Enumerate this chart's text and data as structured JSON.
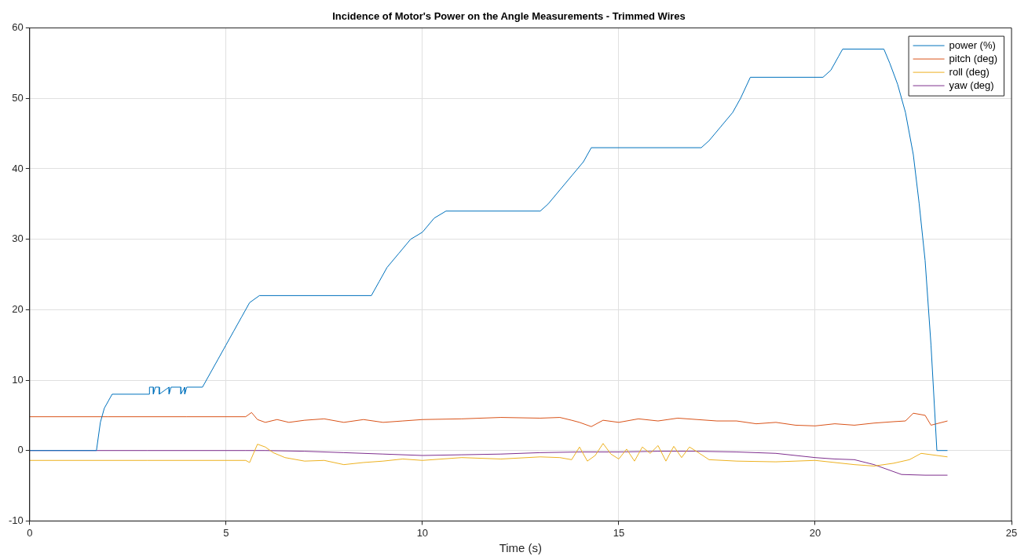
{
  "chart_data": {
    "type": "line",
    "title": "Incidence of Motor's Power on the Angle Measurements - Trimmed Wires",
    "xlabel": "Time (s)",
    "xlim": [
      0,
      25
    ],
    "xticks": [
      0,
      5,
      10,
      15,
      20,
      25
    ],
    "ylim": [
      -10,
      60
    ],
    "yticks": [
      -10,
      0,
      10,
      20,
      30,
      40,
      50,
      60
    ],
    "grid": true,
    "legend": "top right",
    "marker": "none",
    "line_style": "solid",
    "series": [
      {
        "name": "power (%)",
        "color": "#0072bd",
        "x": [
          0,
          1.7,
          1.8,
          1.9,
          2.0,
          2.1,
          3.05,
          3.05,
          3.15,
          3.15,
          3.2,
          3.3,
          3.3,
          3.55,
          3.55,
          3.6,
          3.85,
          3.85,
          3.95,
          3.95,
          4.0,
          4.4,
          4.6,
          4.8,
          5.0,
          5.2,
          5.4,
          5.6,
          5.85,
          8.7,
          8.9,
          9.1,
          9.4,
          9.7,
          10.0,
          10.3,
          10.6,
          13.0,
          13.2,
          13.5,
          13.8,
          14.1,
          14.3,
          17.1,
          17.3,
          17.6,
          17.9,
          18.1,
          18.35,
          20.2,
          20.4,
          20.6,
          20.7,
          21.75,
          21.9,
          22.1,
          22.3,
          22.5,
          22.65,
          22.8,
          22.95,
          23.1,
          23.37
        ],
        "values": [
          0,
          0,
          4,
          6,
          7,
          8,
          8,
          9,
          9,
          8,
          9,
          9,
          8,
          9,
          8,
          9,
          9,
          8,
          9,
          8,
          9,
          9,
          11,
          13,
          15,
          17,
          19,
          21,
          22,
          22,
          24,
          26,
          28,
          30,
          31,
          33,
          34,
          34,
          35,
          37,
          39,
          41,
          43,
          43,
          44,
          46,
          48,
          50,
          53,
          53,
          54,
          56,
          57,
          57,
          55,
          52,
          48,
          42,
          35,
          27,
          15,
          0,
          0
        ]
      },
      {
        "name": "pitch (deg)",
        "color": "#d95319",
        "x": [
          0,
          2,
          4,
          5.5,
          5.65,
          5.8,
          6.0,
          6.3,
          6.6,
          7.0,
          7.5,
          8.0,
          8.5,
          9.0,
          9.5,
          10.0,
          11.0,
          12.0,
          13.0,
          13.5,
          13.8,
          14.0,
          14.3,
          14.6,
          15.0,
          15.5,
          16.0,
          16.5,
          17.0,
          17.5,
          18.0,
          18.5,
          19.0,
          19.5,
          20.0,
          20.5,
          21.0,
          21.5,
          22.0,
          22.3,
          22.5,
          22.8,
          22.95,
          23.37
        ],
        "values": [
          4.8,
          4.8,
          4.8,
          4.8,
          5.4,
          4.4,
          4.0,
          4.4,
          4.0,
          4.3,
          4.5,
          4.0,
          4.4,
          4.0,
          4.2,
          4.4,
          4.5,
          4.7,
          4.6,
          4.7,
          4.3,
          4.0,
          3.4,
          4.3,
          4.0,
          4.5,
          4.2,
          4.6,
          4.4,
          4.2,
          4.2,
          3.8,
          4.0,
          3.6,
          3.5,
          3.8,
          3.6,
          3.9,
          4.1,
          4.2,
          5.3,
          5.0,
          3.6,
          4.2
        ]
      },
      {
        "name": "roll (deg)",
        "color": "#edb120",
        "x": [
          0,
          3,
          5.5,
          5.6,
          5.8,
          6.0,
          6.2,
          6.5,
          7.0,
          7.5,
          8.0,
          8.5,
          9.0,
          9.5,
          10.0,
          11.0,
          12.0,
          13.0,
          13.5,
          13.8,
          14.0,
          14.2,
          14.4,
          14.6,
          14.8,
          15.0,
          15.2,
          15.4,
          15.6,
          15.8,
          16.0,
          16.2,
          16.4,
          16.6,
          16.8,
          17.0,
          17.3,
          18.0,
          19.0,
          20.0,
          21.0,
          21.5,
          22.0,
          22.4,
          22.7,
          23.37
        ],
        "values": [
          -1.4,
          -1.4,
          -1.4,
          -1.7,
          0.9,
          0.5,
          -0.3,
          -1.0,
          -1.5,
          -1.4,
          -2.0,
          -1.7,
          -1.5,
          -1.2,
          -1.4,
          -1.0,
          -1.2,
          -0.9,
          -1.0,
          -1.3,
          0.5,
          -1.5,
          -0.7,
          1.0,
          -0.5,
          -1.2,
          0.2,
          -1.5,
          0.5,
          -0.4,
          0.7,
          -1.5,
          0.6,
          -1.0,
          0.5,
          -0.2,
          -1.3,
          -1.5,
          -1.6,
          -1.4,
          -2.0,
          -2.2,
          -1.8,
          -1.3,
          -0.4,
          -0.9
        ]
      },
      {
        "name": "yaw (deg)",
        "color": "#7e2f8e",
        "x": [
          0,
          3,
          5.5,
          6.0,
          7.0,
          8.0,
          9.0,
          10.0,
          11.0,
          12.0,
          13.0,
          14.0,
          15.0,
          16.0,
          17.0,
          18.0,
          19.0,
          20.0,
          20.5,
          21.0,
          21.5,
          21.8,
          22.2,
          22.8,
          23.37
        ],
        "values": [
          0,
          0,
          0,
          0,
          -0.1,
          -0.3,
          -0.5,
          -0.7,
          -0.6,
          -0.5,
          -0.3,
          -0.2,
          -0.2,
          -0.1,
          -0.1,
          -0.2,
          -0.4,
          -1.0,
          -1.2,
          -1.3,
          -2.0,
          -2.6,
          -3.4,
          -3.5,
          -3.5
        ]
      }
    ]
  }
}
